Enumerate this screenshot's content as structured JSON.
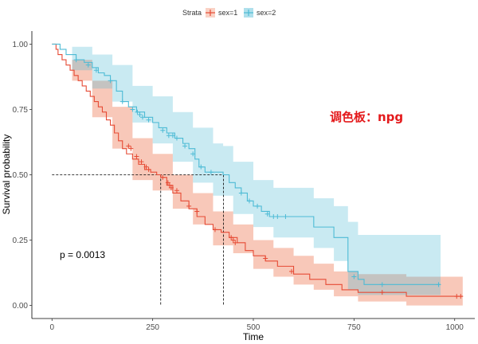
{
  "chart_data": {
    "type": "line",
    "xlabel": "Time",
    "ylabel": "Survival probability",
    "xlim": [
      -50,
      1050
    ],
    "ylim": [
      -0.05,
      1.05
    ],
    "xticks": [
      0,
      250,
      500,
      750,
      1000
    ],
    "yticks": [
      0,
      0.25,
      0.5,
      0.75,
      1
    ],
    "ytick_labels": [
      "0.00",
      "0.25",
      "0.50",
      "0.75",
      "1.00"
    ],
    "legend": {
      "title": "Strata",
      "position": "top"
    },
    "pvalue": "p = 0.0013",
    "annotation": "调色板：npg",
    "median_lines": {
      "y": 0.5,
      "x": [
        270,
        426
      ]
    },
    "series": [
      {
        "name": "sex=1",
        "color": "#E64B35",
        "fill": "#F39B7F",
        "steps": [
          [
            0,
            1.0
          ],
          [
            10,
            0.98
          ],
          [
            15,
            0.96
          ],
          [
            25,
            0.94
          ],
          [
            35,
            0.92
          ],
          [
            45,
            0.9
          ],
          [
            55,
            0.88
          ],
          [
            65,
            0.86
          ],
          [
            75,
            0.84
          ],
          [
            85,
            0.82
          ],
          [
            95,
            0.8
          ],
          [
            105,
            0.78
          ],
          [
            115,
            0.76
          ],
          [
            125,
            0.74
          ],
          [
            135,
            0.71
          ],
          [
            145,
            0.69
          ],
          [
            155,
            0.66
          ],
          [
            165,
            0.63
          ],
          [
            175,
            0.6
          ],
          [
            185,
            0.58
          ],
          [
            200,
            0.56
          ],
          [
            215,
            0.54
          ],
          [
            230,
            0.52
          ],
          [
            245,
            0.51
          ],
          [
            260,
            0.5
          ],
          [
            270,
            0.49
          ],
          [
            285,
            0.46
          ],
          [
            300,
            0.43
          ],
          [
            320,
            0.4
          ],
          [
            340,
            0.37
          ],
          [
            360,
            0.34
          ],
          [
            380,
            0.31
          ],
          [
            400,
            0.29
          ],
          [
            420,
            0.28
          ],
          [
            440,
            0.26
          ],
          [
            460,
            0.24
          ],
          [
            480,
            0.21
          ],
          [
            500,
            0.19
          ],
          [
            530,
            0.17
          ],
          [
            560,
            0.15
          ],
          [
            600,
            0.12
          ],
          [
            640,
            0.1
          ],
          [
            680,
            0.08
          ],
          [
            720,
            0.06
          ],
          [
            760,
            0.05
          ],
          [
            880,
            0.035
          ]
        ],
        "end_x": 1020,
        "band": [
          [
            0,
            1.0,
            1.0
          ],
          [
            50,
            0.94,
            0.86
          ],
          [
            100,
            0.86,
            0.72
          ],
          [
            150,
            0.76,
            0.6
          ],
          [
            200,
            0.64,
            0.48
          ],
          [
            250,
            0.58,
            0.44
          ],
          [
            300,
            0.5,
            0.37
          ],
          [
            350,
            0.43,
            0.31
          ],
          [
            400,
            0.36,
            0.23
          ],
          [
            450,
            0.31,
            0.2
          ],
          [
            500,
            0.25,
            0.14
          ],
          [
            550,
            0.22,
            0.11
          ],
          [
            600,
            0.19,
            0.08
          ],
          [
            650,
            0.16,
            0.06
          ],
          [
            700,
            0.13,
            0.035
          ],
          [
            760,
            0.12,
            0.015
          ],
          [
            880,
            0.11,
            0.0
          ],
          [
            1020,
            0.11,
            0.0
          ]
        ],
        "censors": [
          [
            190,
            0.61
          ],
          [
            196,
            0.6
          ],
          [
            210,
            0.57
          ],
          [
            222,
            0.55
          ],
          [
            234,
            0.53
          ],
          [
            240,
            0.52
          ],
          [
            275,
            0.49
          ],
          [
            288,
            0.47
          ],
          [
            292,
            0.46
          ],
          [
            296,
            0.45
          ],
          [
            310,
            0.44
          ],
          [
            340,
            0.38
          ],
          [
            360,
            0.36
          ],
          [
            405,
            0.29
          ],
          [
            445,
            0.26
          ],
          [
            450,
            0.25
          ],
          [
            455,
            0.24
          ],
          [
            530,
            0.18
          ],
          [
            595,
            0.13
          ],
          [
            820,
            0.05
          ],
          [
            1005,
            0.035
          ],
          [
            1015,
            0.035
          ]
        ]
      },
      {
        "name": "sex=2",
        "color": "#4DBBD5",
        "fill": "#4DBBD5",
        "steps": [
          [
            0,
            1.0
          ],
          [
            20,
            0.98
          ],
          [
            35,
            0.96
          ],
          [
            60,
            0.94
          ],
          [
            80,
            0.93
          ],
          [
            100,
            0.91
          ],
          [
            115,
            0.89
          ],
          [
            130,
            0.88
          ],
          [
            145,
            0.86
          ],
          [
            160,
            0.82
          ],
          [
            175,
            0.78
          ],
          [
            190,
            0.76
          ],
          [
            210,
            0.74
          ],
          [
            230,
            0.72
          ],
          [
            250,
            0.7
          ],
          [
            265,
            0.68
          ],
          [
            285,
            0.66
          ],
          [
            305,
            0.64
          ],
          [
            325,
            0.62
          ],
          [
            340,
            0.6
          ],
          [
            355,
            0.56
          ],
          [
            365,
            0.53
          ],
          [
            380,
            0.51
          ],
          [
            425,
            0.5
          ],
          [
            440,
            0.47
          ],
          [
            455,
            0.45
          ],
          [
            470,
            0.43
          ],
          [
            485,
            0.4
          ],
          [
            500,
            0.38
          ],
          [
            520,
            0.36
          ],
          [
            540,
            0.34
          ],
          [
            600,
            0.34
          ],
          [
            650,
            0.3
          ],
          [
            700,
            0.26
          ],
          [
            735,
            0.13
          ],
          [
            760,
            0.1
          ],
          [
            775,
            0.08
          ]
        ],
        "end_x": 965,
        "band": [
          [
            0,
            1.0,
            1.0
          ],
          [
            50,
            0.99,
            0.9
          ],
          [
            100,
            0.96,
            0.83
          ],
          [
            150,
            0.92,
            0.78
          ],
          [
            200,
            0.84,
            0.7
          ],
          [
            250,
            0.8,
            0.62
          ],
          [
            300,
            0.74,
            0.55
          ],
          [
            350,
            0.68,
            0.47
          ],
          [
            400,
            0.62,
            0.42
          ],
          [
            425,
            0.61,
            0.42
          ],
          [
            450,
            0.55,
            0.35
          ],
          [
            500,
            0.48,
            0.3
          ],
          [
            550,
            0.45,
            0.26
          ],
          [
            650,
            0.41,
            0.22
          ],
          [
            700,
            0.38,
            0.17
          ],
          [
            735,
            0.32,
            0.06
          ],
          [
            760,
            0.27,
            0.04
          ],
          [
            965,
            0.27,
            0.04
          ]
        ],
        "censors": [
          [
            60,
            0.94
          ],
          [
            90,
            0.92
          ],
          [
            110,
            0.9
          ],
          [
            145,
            0.86
          ],
          [
            175,
            0.78
          ],
          [
            200,
            0.75
          ],
          [
            212,
            0.74
          ],
          [
            218,
            0.73
          ],
          [
            225,
            0.72
          ],
          [
            240,
            0.71
          ],
          [
            275,
            0.67
          ],
          [
            290,
            0.65
          ],
          [
            300,
            0.65
          ],
          [
            310,
            0.64
          ],
          [
            330,
            0.61
          ],
          [
            350,
            0.58
          ],
          [
            370,
            0.53
          ],
          [
            395,
            0.51
          ],
          [
            470,
            0.43
          ],
          [
            490,
            0.4
          ],
          [
            510,
            0.38
          ],
          [
            535,
            0.35
          ],
          [
            550,
            0.34
          ],
          [
            560,
            0.34
          ],
          [
            580,
            0.34
          ],
          [
            750,
            0.11
          ],
          [
            820,
            0.08
          ],
          [
            960,
            0.08
          ]
        ]
      }
    ]
  }
}
